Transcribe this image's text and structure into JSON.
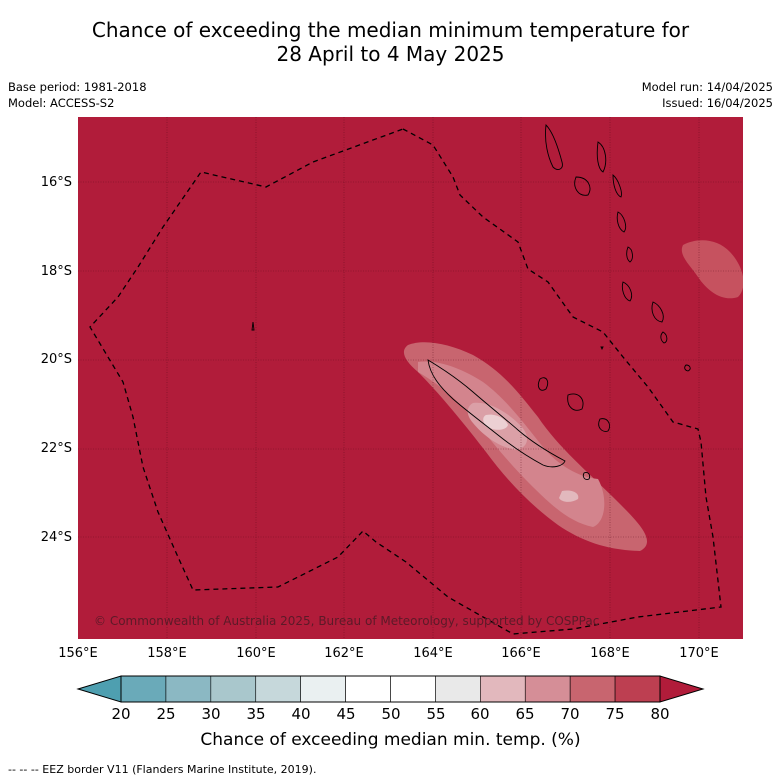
{
  "title": {
    "line1": "Chance of exceeding the median minimum temperature for",
    "line2": "28 April to 4 May 2025"
  },
  "meta_left": {
    "base_period": "Base period: 1981-2018",
    "model": "Model: ACCESS-S2"
  },
  "meta_right": {
    "model_run": "Model run: 14/04/2025",
    "issued": "Issued: 16/04/2025"
  },
  "map": {
    "lat_labels": [
      "16°S",
      "18°S",
      "20°S",
      "22°S",
      "24°S"
    ],
    "lon_labels": [
      "156°E",
      "158°E",
      "160°E",
      "162°E",
      "164°E",
      "166°E",
      "168°E",
      "170°E"
    ],
    "background_class_color": "#b11c3a",
    "copyright": "© Commonwealth of Australia 2025, Bureau of Meteorology, supported by COSPPac"
  },
  "colorbar": {
    "ticks": [
      "20",
      "25",
      "30",
      "35",
      "40",
      "45",
      "50",
      "55",
      "60",
      "65",
      "70",
      "75",
      "80"
    ],
    "colors": [
      "#6aaab9",
      "#8bb8c3",
      "#a9c7cc",
      "#c6d8db",
      "#eaf0f1",
      "#ffffff",
      "#ffffff",
      "#e9e9e9",
      "#e2b8bd",
      "#d58e97",
      "#c8656f",
      "#bd3f51"
    ],
    "under_color": "#4e9fb0",
    "over_color": "#b11c3a",
    "label": "Chance of exceeding median min. temp. (%)"
  },
  "legend_note": "--  --  -- EEZ border V11 (Flanders Marine Institute, 2019)."
}
